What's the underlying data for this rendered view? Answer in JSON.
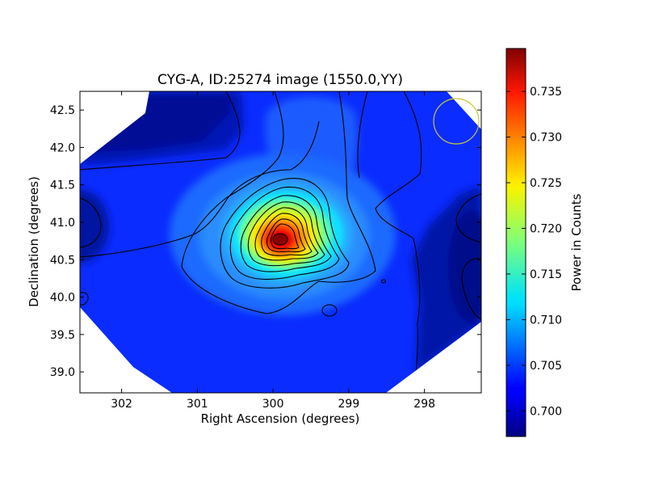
{
  "chart_data": {
    "type": "heatmap",
    "title": "CYG-A, ID:25274 image (1550.0,YY)",
    "xlabel": "Right Ascension (degrees)",
    "ylabel": "Declination (degrees)",
    "colorbar_label": "Power in Counts",
    "xlim": [
      302.55,
      297.25
    ],
    "ylim": [
      38.72,
      42.75
    ],
    "x_ticks": [
      302,
      301,
      300,
      299,
      298
    ],
    "y_ticks": [
      39.0,
      39.5,
      40.0,
      40.5,
      41.0,
      41.5,
      42.0,
      42.5
    ],
    "x_tick_labels": [
      "302",
      "301",
      "300",
      "299",
      "298"
    ],
    "y_tick_labels": [
      "39.0",
      "39.5",
      "40.0",
      "40.5",
      "41.0",
      "41.5",
      "42.0",
      "42.5"
    ],
    "colorbar_range": [
      0.6972,
      0.7397
    ],
    "colorbar_ticks": [
      0.7,
      0.705,
      0.71,
      0.715,
      0.72,
      0.725,
      0.73,
      0.735
    ],
    "colorbar_tick_labels": [
      "0.700",
      "0.705",
      "0.710",
      "0.715",
      "0.720",
      "0.725",
      "0.730",
      "0.735"
    ],
    "colormap": "jet",
    "source": {
      "ra": 299.87,
      "dec": 40.77,
      "peak_value": 0.7385
    },
    "beam_circle": {
      "ra": 297.58,
      "dec": 42.35,
      "color": "#c8c83a"
    },
    "contour_color": "#000000",
    "grid": false
  }
}
